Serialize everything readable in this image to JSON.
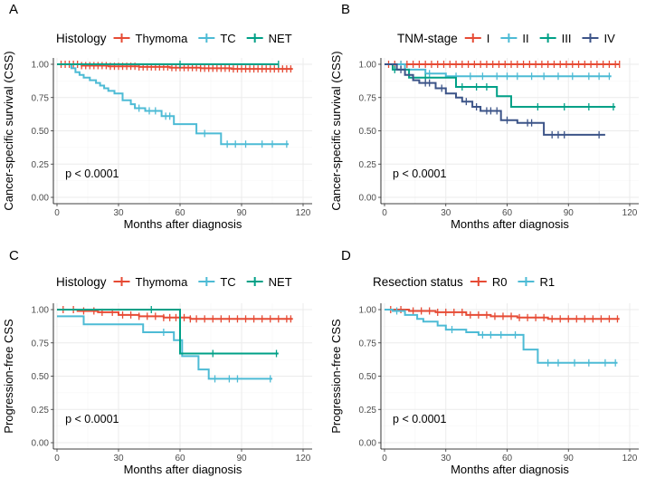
{
  "chart_data": [
    {
      "type": "line",
      "panel": "A",
      "legend_title": "Histology",
      "legend_position": "top",
      "xlabel": "Months after diagnosis",
      "ylabel": "Cancer-specific survival (CSS)",
      "xlim": [
        0,
        120
      ],
      "ylim": [
        0,
        1
      ],
      "x_ticks": [
        "0",
        "30",
        "60",
        "90",
        "120"
      ],
      "y_ticks": [
        "0.00",
        "0.25",
        "0.50",
        "0.75",
        "1.00"
      ],
      "annotation": "p < 0.0001",
      "series": [
        {
          "name": "Thymoma",
          "color": "#e64b35",
          "steps": [
            [
              0,
              1.0
            ],
            [
              12,
              0.99
            ],
            [
              25,
              0.985
            ],
            [
              40,
              0.98
            ],
            [
              55,
              0.975
            ],
            [
              70,
              0.97
            ],
            [
              85,
              0.965
            ],
            [
              115,
              0.965
            ]
          ],
          "censor": [
            2,
            4,
            6,
            8,
            10,
            12,
            14,
            16,
            18,
            20,
            22,
            24,
            26,
            28,
            30,
            32,
            34,
            36,
            38,
            40,
            42,
            44,
            46,
            48,
            50,
            52,
            54,
            56,
            58,
            60,
            62,
            64,
            66,
            68,
            70,
            72,
            74,
            76,
            78,
            80,
            82,
            84,
            86,
            88,
            90,
            92,
            94,
            96,
            98,
            100,
            102,
            104,
            106,
            108,
            110,
            112,
            114
          ]
        },
        {
          "name": "TC",
          "color": "#4dbbd5",
          "steps": [
            [
              0,
              1.0
            ],
            [
              7,
              0.97
            ],
            [
              9,
              0.94
            ],
            [
              11,
              0.92
            ],
            [
              13,
              0.9
            ],
            [
              16,
              0.88
            ],
            [
              19,
              0.86
            ],
            [
              21,
              0.84
            ],
            [
              23,
              0.82
            ],
            [
              25,
              0.8
            ],
            [
              28,
              0.78
            ],
            [
              32,
              0.73
            ],
            [
              36,
              0.7
            ],
            [
              38,
              0.67
            ],
            [
              43,
              0.65
            ],
            [
              51,
              0.61
            ],
            [
              57,
              0.55
            ],
            [
              68,
              0.48
            ],
            [
              80,
              0.4
            ],
            [
              113,
              0.4
            ]
          ],
          "censor": [
            40,
            45,
            48,
            53,
            55,
            72,
            83,
            87,
            92,
            100,
            105,
            112
          ]
        },
        {
          "name": "NET",
          "color": "#00a087",
          "steps": [
            [
              0,
              1.0
            ],
            [
              108,
              1.0
            ]
          ],
          "censor": [
            60,
            108
          ]
        }
      ]
    },
    {
      "type": "line",
      "panel": "B",
      "legend_title": "TNM-stage",
      "legend_position": "top",
      "xlabel": "Months after diagnosis",
      "ylabel": "Cancer-specific survival (CSS)",
      "xlim": [
        0,
        120
      ],
      "ylim": [
        0,
        1
      ],
      "x_ticks": [
        "0",
        "30",
        "60",
        "90",
        "120"
      ],
      "y_ticks": [
        "0.00",
        "0.25",
        "0.50",
        "0.75",
        "1.00"
      ],
      "annotation": "p < 0.0001",
      "series": [
        {
          "name": "I",
          "color": "#e64b35",
          "steps": [
            [
              0,
              1.0
            ],
            [
              115,
              1.0
            ]
          ],
          "censor": [
            2,
            5,
            8,
            11,
            14,
            17,
            20,
            23,
            26,
            29,
            32,
            35,
            38,
            41,
            44,
            47,
            50,
            53,
            56,
            59,
            62,
            65,
            68,
            71,
            74,
            77,
            80,
            83,
            86,
            89,
            92,
            95,
            98,
            101,
            104,
            107,
            110,
            113,
            115
          ]
        },
        {
          "name": "II",
          "color": "#4dbbd5",
          "steps": [
            [
              0,
              1.0
            ],
            [
              10,
              0.96
            ],
            [
              20,
              0.93
            ],
            [
              30,
              0.91
            ],
            [
              111,
              0.91
            ]
          ],
          "censor": [
            8,
            22,
            35,
            42,
            48,
            55,
            60,
            65,
            72,
            78,
            85,
            92,
            100,
            105,
            110
          ]
        },
        {
          "name": "III",
          "color": "#00a087",
          "steps": [
            [
              0,
              1.0
            ],
            [
              4,
              0.96
            ],
            [
              12,
              0.9
            ],
            [
              35,
              0.83
            ],
            [
              55,
              0.76
            ],
            [
              62,
              0.68
            ],
            [
              113,
              0.68
            ]
          ],
          "censor": [
            5,
            20,
            38,
            45,
            50,
            75,
            88,
            100,
            112
          ]
        },
        {
          "name": "IV",
          "color": "#3c5488",
          "steps": [
            [
              0,
              1.0
            ],
            [
              6,
              0.96
            ],
            [
              10,
              0.92
            ],
            [
              14,
              0.88
            ],
            [
              17,
              0.86
            ],
            [
              25,
              0.82
            ],
            [
              30,
              0.78
            ],
            [
              35,
              0.75
            ],
            [
              38,
              0.72
            ],
            [
              43,
              0.68
            ],
            [
              47,
              0.65
            ],
            [
              57,
              0.58
            ],
            [
              65,
              0.56
            ],
            [
              78,
              0.47
            ],
            [
              108,
              0.47
            ]
          ],
          "censor": [
            8,
            20,
            22,
            28,
            40,
            45,
            50,
            52,
            55,
            60,
            70,
            72,
            82,
            85,
            88,
            105
          ]
        }
      ]
    },
    {
      "type": "line",
      "panel": "C",
      "legend_title": "Histology",
      "legend_position": "top",
      "xlabel": "Months after diagnosis",
      "ylabel": "Progression-free CSS",
      "xlim": [
        0,
        120
      ],
      "ylim": [
        0,
        1
      ],
      "x_ticks": [
        "0",
        "30",
        "60",
        "90",
        "120"
      ],
      "y_ticks": [
        "0.00",
        "0.25",
        "0.50",
        "0.75",
        "1.00"
      ],
      "annotation": "p < 0.0001",
      "series": [
        {
          "name": "Thymoma",
          "color": "#e64b35",
          "steps": [
            [
              0,
              1.0
            ],
            [
              10,
              0.99
            ],
            [
              20,
              0.98
            ],
            [
              30,
              0.96
            ],
            [
              40,
              0.95
            ],
            [
              52,
              0.94
            ],
            [
              65,
              0.93
            ],
            [
              115,
              0.93
            ]
          ],
          "censor": [
            3,
            8,
            13,
            18,
            22,
            27,
            32,
            36,
            40,
            44,
            48,
            52,
            55,
            58,
            62,
            65,
            68,
            72,
            76,
            80,
            84,
            88,
            92,
            96,
            100,
            104,
            108,
            112,
            114
          ]
        },
        {
          "name": "TC",
          "color": "#4dbbd5",
          "steps": [
            [
              0,
              0.95
            ],
            [
              13,
              0.89
            ],
            [
              42,
              0.83
            ],
            [
              57,
              0.77
            ],
            [
              61,
              0.65
            ],
            [
              69,
              0.55
            ],
            [
              74,
              0.48
            ],
            [
              105,
              0.48
            ]
          ],
          "censor": [
            52,
            60,
            77,
            84,
            88,
            104
          ]
        },
        {
          "name": "NET",
          "color": "#00a087",
          "steps": [
            [
              0,
              1.0
            ],
            [
              60,
              1.0
            ],
            [
              60,
              0.67
            ],
            [
              108,
              0.67
            ]
          ],
          "censor": [
            46,
            76,
            107
          ]
        }
      ]
    },
    {
      "type": "line",
      "panel": "D",
      "legend_title": "Resection status",
      "legend_position": "top",
      "xlabel": "Months after diagnosis",
      "ylabel": "Progression-free CSS",
      "xlim": [
        0,
        120
      ],
      "ylim": [
        0,
        1
      ],
      "x_ticks": [
        "0",
        "30",
        "60",
        "90",
        "120"
      ],
      "y_ticks": [
        "0.00",
        "0.25",
        "0.50",
        "0.75",
        "1.00"
      ],
      "annotation": "p < 0.0001",
      "series": [
        {
          "name": "R0",
          "color": "#e64b35",
          "steps": [
            [
              0,
              1.0
            ],
            [
              12,
              0.99
            ],
            [
              25,
              0.98
            ],
            [
              40,
              0.96
            ],
            [
              52,
              0.95
            ],
            [
              65,
              0.94
            ],
            [
              80,
              0.93
            ],
            [
              115,
              0.93
            ]
          ],
          "censor": [
            3,
            8,
            14,
            18,
            22,
            26,
            30,
            34,
            38,
            42,
            46,
            50,
            54,
            58,
            62,
            66,
            70,
            74,
            78,
            82,
            86,
            90,
            94,
            98,
            102,
            106,
            110,
            114
          ]
        },
        {
          "name": "R1",
          "color": "#4dbbd5",
          "steps": [
            [
              0,
              1.0
            ],
            [
              4,
              0.99
            ],
            [
              10,
              0.96
            ],
            [
              16,
              0.93
            ],
            [
              19,
              0.91
            ],
            [
              26,
              0.88
            ],
            [
              30,
              0.85
            ],
            [
              40,
              0.83
            ],
            [
              46,
              0.81
            ],
            [
              68,
              0.7
            ],
            [
              75,
              0.6
            ],
            [
              114,
              0.6
            ]
          ],
          "censor": [
            6,
            33,
            48,
            52,
            57,
            64,
            80,
            85,
            93,
            100,
            108,
            113
          ]
        }
      ]
    }
  ]
}
